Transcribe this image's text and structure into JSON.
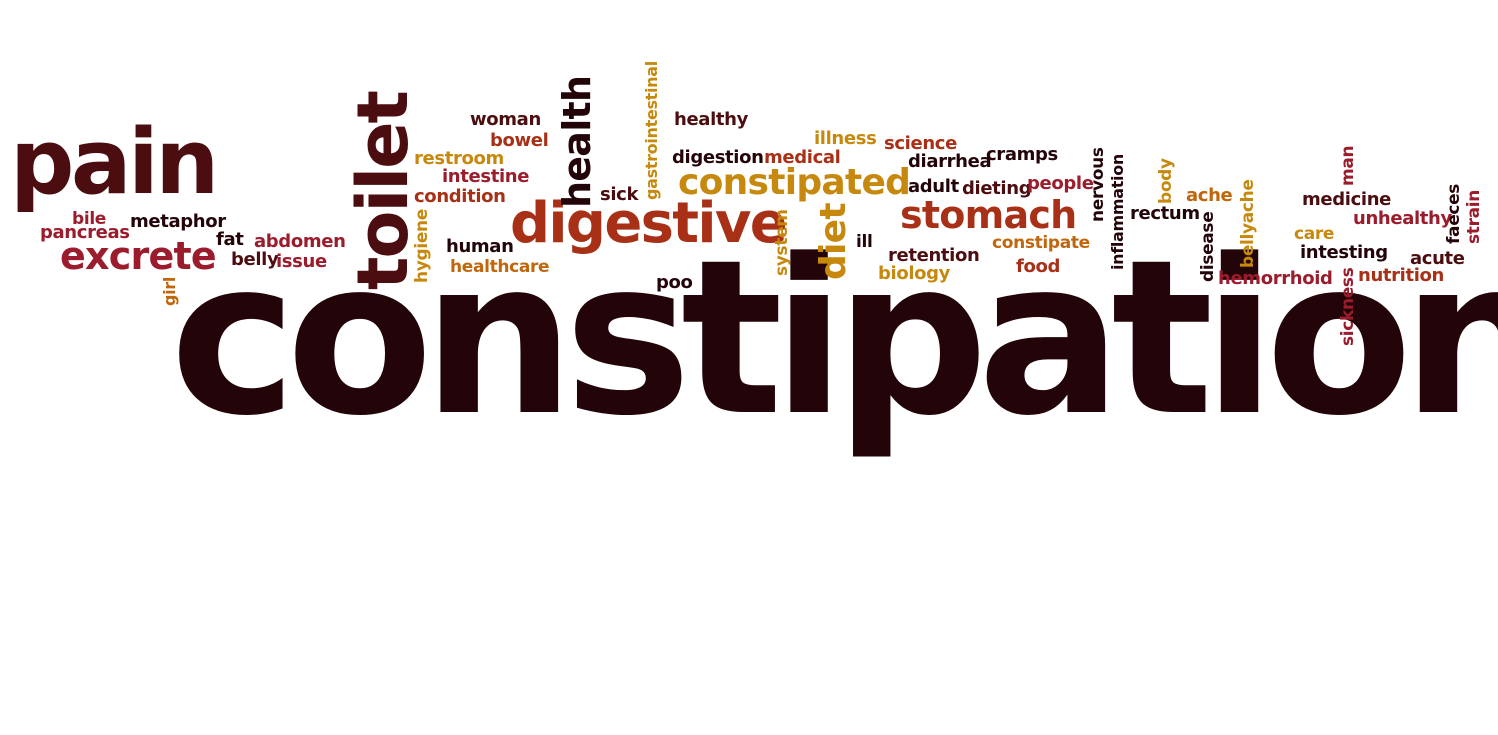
{
  "colors": {
    "darkest": "#230509",
    "dark_maroon": "#4b0d10",
    "maroon": "#7a1420",
    "crimson": "#9b1c2c",
    "rust": "#a83016",
    "orange": "#c0660d",
    "gold": "#c7880e"
  },
  "words": {
    "constipation": "constipation",
    "pain": "pain",
    "toilet": "toilet",
    "digestive": "digestive",
    "constipated": "constipated",
    "stomach": "stomach",
    "health": "health",
    "excrete": "excrete",
    "diet": "diet",
    "gastrointestinal": "gastrointestinal",
    "woman": "woman",
    "bowel": "bowel",
    "healthy": "healthy",
    "illness": "illness",
    "science": "science",
    "restroom": "restroom",
    "intestine": "intestine",
    "condition": "condition",
    "sick": "sick",
    "digestion": "digestion",
    "medical": "medical",
    "diarrhea": "diarrhea",
    "cramps": "cramps",
    "adult": "adult",
    "dieting": "dieting",
    "people": "people",
    "nervous": "nervous",
    "inflammation": "inflammation",
    "body": "body",
    "ache": "ache",
    "man": "man",
    "medicine": "medicine",
    "faeces": "faeces",
    "strain": "strain",
    "bile": "bile",
    "metaphor": "metaphor",
    "pancreas": "pancreas",
    "fat": "fat",
    "abdomen": "abdomen",
    "belly": "belly",
    "issue": "issue",
    "girl": "girl",
    "hygiene": "hygiene",
    "human": "human",
    "healthcare": "healthcare",
    "system": "system",
    "ill": "ill",
    "retention": "retention",
    "biology": "biology",
    "constipate": "constipate",
    "food": "food",
    "rectum": "rectum",
    "disease": "disease",
    "bellyache": "bellyache",
    "unhealthy": "unhealthy",
    "care": "care",
    "intesting": "intesting",
    "acute": "acute",
    "hemorrhoid": "hemorrhoid",
    "nutrition": "nutrition",
    "sickness": "sickness",
    "poo": "poo"
  }
}
